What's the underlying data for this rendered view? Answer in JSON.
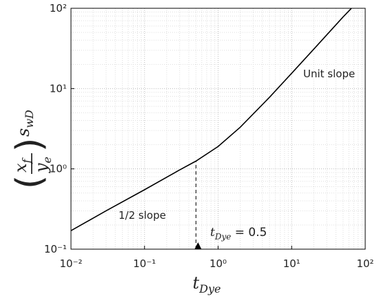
{
  "chart_data": {
    "type": "line",
    "log_x": true,
    "log_y": true,
    "grid": true,
    "x_label": {
      "main": "t",
      "sub": "Dye"
    },
    "y_label": {
      "numerator": "x",
      "numerator_sub": "f",
      "denominator": "y",
      "denominator_sub": "e",
      "main": "s",
      "sub": "wD"
    },
    "xlim": [
      0.01,
      100
    ],
    "ylim": [
      0.1,
      100
    ],
    "xticks": [
      {
        "value": 0.01,
        "label": "10⁻²"
      },
      {
        "value": 0.1,
        "label": "10⁻¹"
      },
      {
        "value": 1,
        "label": "10⁰"
      },
      {
        "value": 10,
        "label": "10¹"
      },
      {
        "value": 100,
        "label": "10²"
      }
    ],
    "yticks": [
      {
        "value": 0.1,
        "label": "10⁻¹"
      },
      {
        "value": 1,
        "label": "10⁰"
      },
      {
        "value": 10,
        "label": "10¹"
      },
      {
        "value": 100,
        "label": "10²"
      }
    ],
    "xminorticks": [
      0.02,
      0.03,
      0.04,
      0.05,
      0.06,
      0.07,
      0.08,
      0.09,
      0.2,
      0.3,
      0.4,
      0.5,
      0.6,
      0.7,
      0.8,
      0.9,
      2,
      3,
      4,
      5,
      6,
      7,
      8,
      9,
      20,
      30,
      40,
      50,
      60,
      70,
      80,
      90
    ],
    "yminorticks": [
      0.2,
      0.3,
      0.4,
      0.5,
      0.6,
      0.7,
      0.8,
      0.9,
      2,
      3,
      4,
      5,
      6,
      7,
      8,
      9,
      20,
      30,
      40,
      50,
      60,
      70,
      80,
      90
    ],
    "x": [
      0.01,
      0.03,
      0.1,
      0.3,
      0.5,
      1,
      2,
      5,
      10,
      20,
      50,
      65
    ],
    "series": [
      {
        "color": "#000000",
        "values": [
          0.17,
          0.3,
          0.55,
          0.97,
          1.25,
          1.9,
          3.3,
          7.8,
          15.5,
          31,
          78,
          100
        ]
      }
    ],
    "annotations": [
      {
        "text": "Unit slope"
      },
      {
        "text": "1/2 slope"
      }
    ],
    "marker": {
      "x": 0.5,
      "y": 1.25,
      "label_main": "t",
      "label_sub": "Dye",
      "label_rest": " = 0.5"
    }
  }
}
